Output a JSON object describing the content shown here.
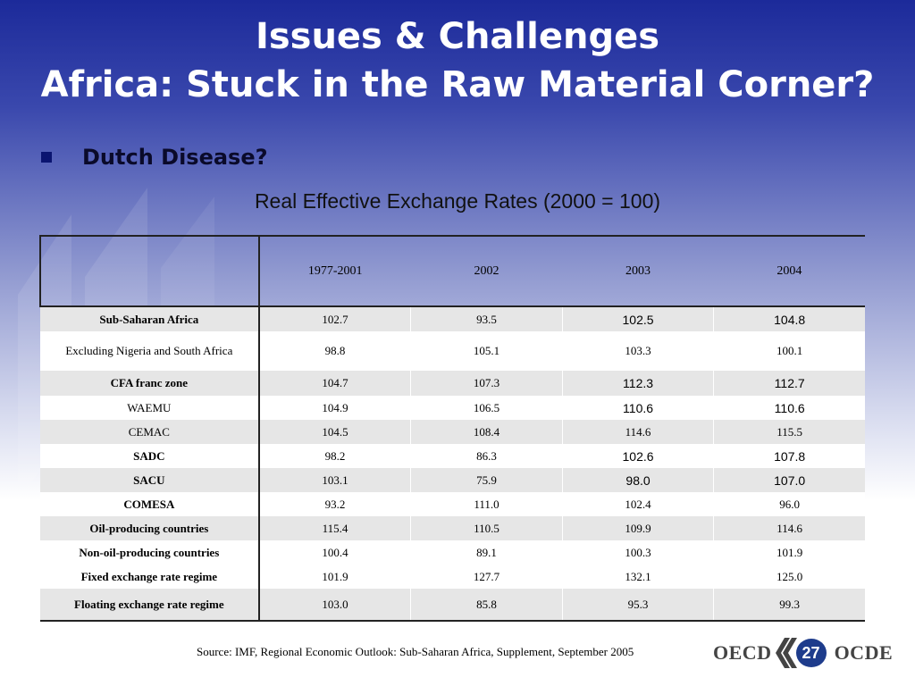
{
  "slide": {
    "title_line1": "Issues & Challenges",
    "title_line2": "Africa: Stuck in the Raw Material Corner?",
    "bullet": "Dutch Disease?",
    "table_title": "Real Effective Exchange Rates (2000 = 100)",
    "source": "Source: IMF, Regional Economic Outlook: Sub-Saharan Africa, Supplement, September 2005",
    "page_number": "27",
    "logo_left": "OECD",
    "logo_right": "OCDE"
  },
  "table": {
    "columns": [
      "1977-2001",
      "2002",
      "2003",
      "2004"
    ],
    "rows": [
      {
        "label": "Sub-Saharan Africa",
        "values": [
          "102.7",
          "93.5",
          "102.5",
          "104.8"
        ]
      },
      {
        "label": "Excluding Nigeria and South Africa",
        "values": [
          "98.8",
          "105.1",
          "103.3",
          "100.1"
        ]
      },
      {
        "label": "CFA franc zone",
        "values": [
          "104.7",
          "107.3",
          "112.3",
          "112.7"
        ]
      },
      {
        "label": "WAEMU",
        "values": [
          "104.9",
          "106.5",
          "110.6",
          "110.6"
        ]
      },
      {
        "label": "CEMAC",
        "values": [
          "104.5",
          "108.4",
          "114.6",
          "115.5"
        ]
      },
      {
        "label": "SADC",
        "values": [
          "98.2",
          "86.3",
          "102.6",
          "107.8"
        ]
      },
      {
        "label": "SACU",
        "values": [
          "103.1",
          "75.9",
          "98.0",
          "107.0"
        ]
      },
      {
        "label": "COMESA",
        "values": [
          "93.2",
          "111.0",
          "102.4",
          "96.0"
        ]
      },
      {
        "label": "Oil-producing countries",
        "values": [
          "115.4",
          "110.5",
          "109.9",
          "114.6"
        ]
      },
      {
        "label": "Non-oil-producing countries",
        "values": [
          "100.4",
          "89.1",
          "100.3",
          "101.9"
        ]
      },
      {
        "label": "Fixed exchange rate regime",
        "values": [
          "101.9",
          "127.7",
          "132.1",
          "125.0"
        ]
      },
      {
        "label": "Floating exchange rate regime",
        "values": [
          "103.0",
          "85.8",
          "95.3",
          "99.3"
        ]
      }
    ]
  },
  "colors": {
    "title_bg_top": "#1c2a9a",
    "bullet": "#0a1470",
    "row_shade": "#e6e6e6",
    "logo_circle": "#1e3c8c"
  }
}
